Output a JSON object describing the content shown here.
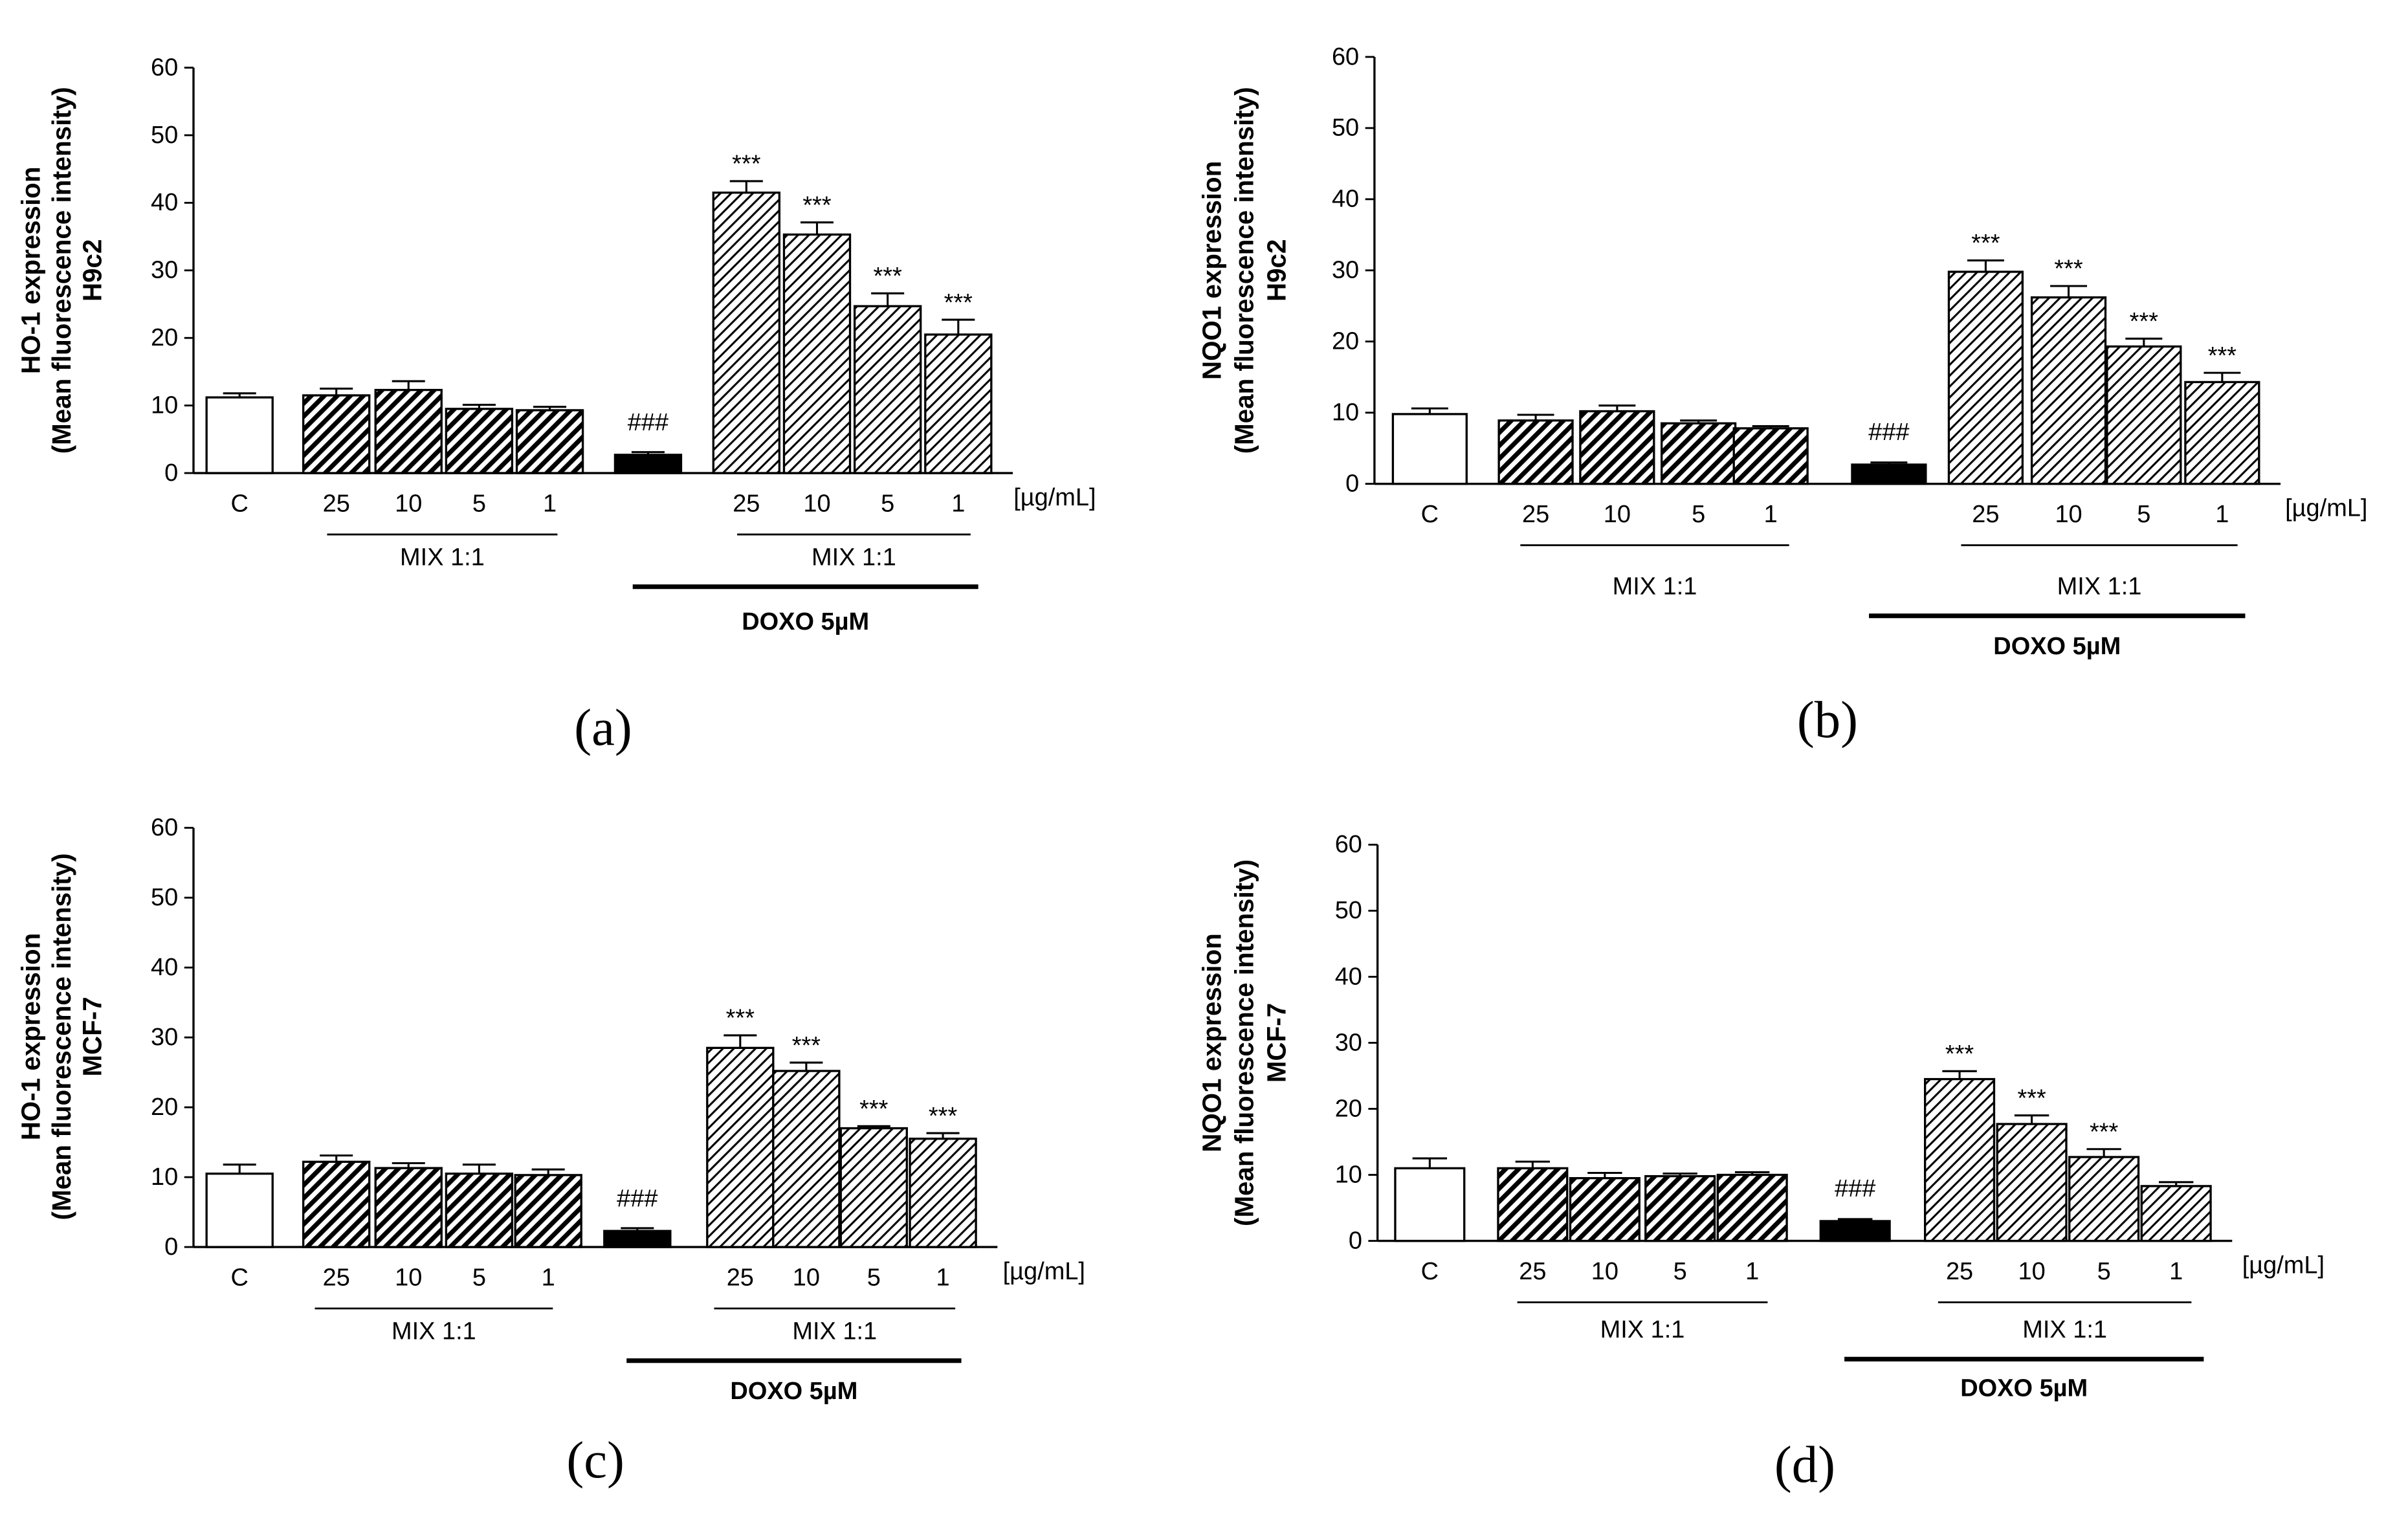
{
  "chart_data": [
    {
      "type": "bar",
      "panel_label": "(a)",
      "ylabel_lines": [
        "HO-1 expression",
        "(Mean fluorescence intensity)",
        "H9c2"
      ],
      "ylim": [
        0,
        60
      ],
      "yticks": [
        "0",
        "10",
        "20",
        "30",
        "40",
        "50",
        "60"
      ],
      "categories": [
        "C",
        "25",
        "10",
        "5",
        "1",
        "",
        "25",
        "10",
        "5",
        "1"
      ],
      "unit_label": "[µg/mL]",
      "values": [
        11.2,
        11.5,
        12.3,
        9.5,
        9.3,
        2.7,
        41.5,
        35.3,
        24.7,
        20.5
      ],
      "errors": [
        0.6,
        1.0,
        1.3,
        0.6,
        0.5,
        0.4,
        1.7,
        1.8,
        1.9,
        2.2
      ],
      "significance": [
        "",
        "",
        "",
        "",
        "",
        "###",
        "***",
        "***",
        "***",
        "***"
      ],
      "group_labels": [
        "MIX 1:1",
        "MIX 1:1"
      ],
      "treatment_label": "DOXO 5µM",
      "bar_styles": [
        "open",
        "hatch-dense",
        "hatch-dense",
        "hatch-dense",
        "hatch-dense",
        "solid",
        "hatch-light",
        "hatch-light",
        "hatch-light",
        "hatch-light"
      ]
    },
    {
      "type": "bar",
      "panel_label": "(b)",
      "ylabel_lines": [
        "NQO1 expression",
        "(Mean fluorescence intensity)",
        "H9c2"
      ],
      "ylim": [
        0,
        60
      ],
      "yticks": [
        "0",
        "10",
        "20",
        "30",
        "40",
        "50",
        "60"
      ],
      "categories": [
        "C",
        "25",
        "10",
        "5",
        "1",
        "",
        "25",
        "10",
        "5",
        "1"
      ],
      "unit_label": "[µg/mL]",
      "values": [
        9.8,
        8.9,
        10.2,
        8.5,
        7.8,
        2.7,
        29.8,
        26.2,
        19.3,
        14.3
      ],
      "errors": [
        0.8,
        0.8,
        0.8,
        0.4,
        0.3,
        0.3,
        1.6,
        1.6,
        1.1,
        1.3
      ],
      "significance": [
        "",
        "",
        "",
        "",
        "",
        "###",
        "***",
        "***",
        "***",
        "***"
      ],
      "group_labels": [
        "MIX 1:1",
        "MIX 1:1"
      ],
      "treatment_label": "DOXO 5µM",
      "bar_styles": [
        "open",
        "hatch-dense",
        "hatch-dense",
        "hatch-dense",
        "hatch-dense",
        "solid",
        "hatch-light",
        "hatch-light",
        "hatch-light",
        "hatch-light"
      ]
    },
    {
      "type": "bar",
      "panel_label": "(c)",
      "ylabel_lines": [
        "HO-1 expression",
        "(Mean fluorescence intensity)",
        "MCF-7"
      ],
      "ylim": [
        0,
        60
      ],
      "yticks": [
        "0",
        "10",
        "20",
        "30",
        "40",
        "50",
        "60"
      ],
      "categories": [
        "C",
        "25",
        "10",
        "5",
        "1",
        "",
        "25",
        "10",
        "5",
        "1"
      ],
      "unit_label": "[µg/mL]",
      "values": [
        10.5,
        12.2,
        11.3,
        10.5,
        10.3,
        2.3,
        28.5,
        25.2,
        17.0,
        15.5
      ],
      "errors": [
        1.3,
        0.9,
        0.7,
        1.3,
        0.8,
        0.4,
        1.8,
        1.2,
        0.3,
        0.8
      ],
      "significance": [
        "",
        "",
        "",
        "",
        "",
        "###",
        "***",
        "***",
        "***",
        "***"
      ],
      "group_labels": [
        "MIX 1:1",
        "MIX 1:1"
      ],
      "treatment_label": "DOXO 5µM",
      "bar_styles": [
        "open",
        "hatch-dense",
        "hatch-dense",
        "hatch-dense",
        "hatch-dense",
        "solid",
        "hatch-light",
        "hatch-light",
        "hatch-light",
        "hatch-light"
      ]
    },
    {
      "type": "bar",
      "panel_label": "(d)",
      "ylabel_lines": [
        "NQO1 expression",
        "(Mean fluorescence intensity)",
        "MCF-7"
      ],
      "ylim": [
        0,
        60
      ],
      "yticks": [
        "0",
        "10",
        "20",
        "30",
        "40",
        "50",
        "60"
      ],
      "categories": [
        "C",
        "25",
        "10",
        "5",
        "1",
        "",
        "25",
        "10",
        "5",
        "1"
      ],
      "unit_label": "[µg/mL]",
      "values": [
        11.0,
        11.0,
        9.5,
        9.8,
        10.0,
        3.0,
        24.5,
        17.7,
        12.7,
        8.3
      ],
      "errors": [
        1.5,
        1.0,
        0.8,
        0.4,
        0.4,
        0.3,
        1.2,
        1.3,
        1.2,
        0.6
      ],
      "significance": [
        "",
        "",
        "",
        "",
        "",
        "###",
        "***",
        "***",
        "***",
        ""
      ],
      "group_labels": [
        "MIX 1:1",
        "MIX 1:1"
      ],
      "treatment_label": "DOXO 5µM",
      "bar_styles": [
        "open",
        "hatch-dense",
        "hatch-dense",
        "hatch-dense",
        "hatch-dense",
        "solid",
        "hatch-light",
        "hatch-light",
        "hatch-light",
        "hatch-light"
      ]
    }
  ]
}
